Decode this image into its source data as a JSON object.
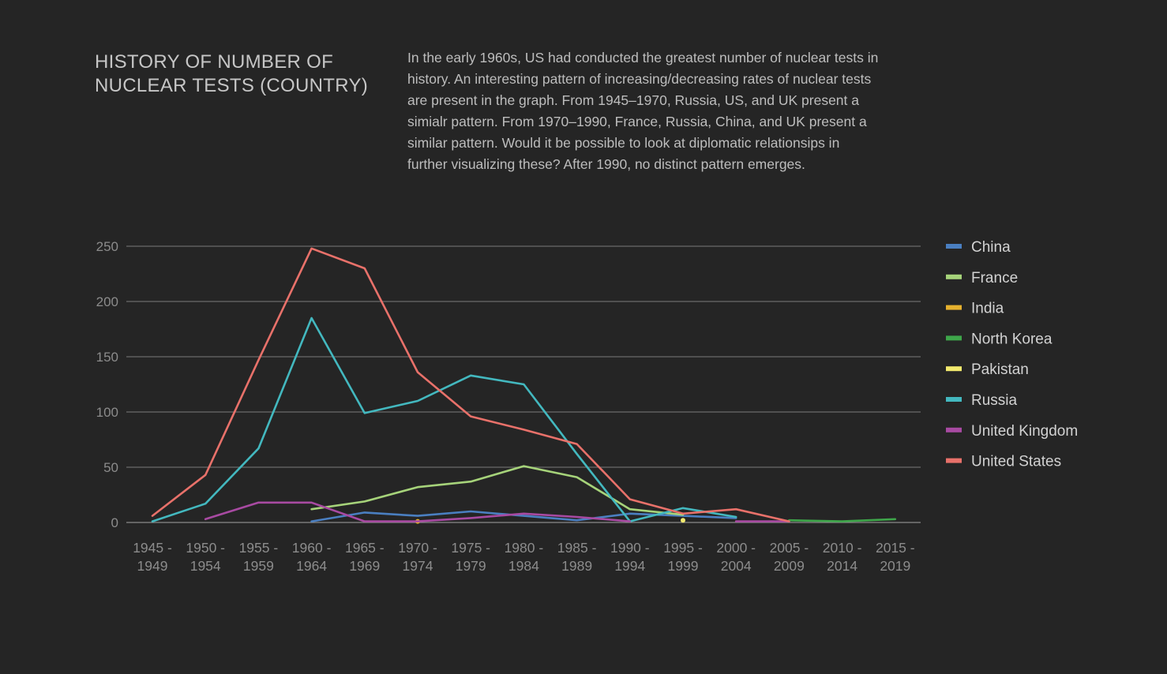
{
  "header": {
    "title_line1": "HISTORY OF NUMBER OF",
    "title_line2": "NUCLEAR TESTS (COUNTRY)",
    "description": "In the early 1960s, US had conducted the greatest number of nuclear tests in history. An interesting pattern of increasing/decreasing rates of nuclear tests are present in the graph. From 1945–1970, Russia, US, and UK present a simialr pattern. From 1970–1990, France, Russia, China, and UK present a similar pattern. Would it be possible to look at diplomatic relationsips in further visualizing these? After 1990, no distinct pattern emerges."
  },
  "chart_data": {
    "type": "line",
    "categories": [
      [
        "1945 -",
        "1949"
      ],
      [
        "1950 -",
        "1954"
      ],
      [
        "1955 -",
        "1959"
      ],
      [
        "1960 -",
        "1964"
      ],
      [
        "1965 -",
        "1969"
      ],
      [
        "1970 -",
        "1974"
      ],
      [
        "1975 -",
        "1979"
      ],
      [
        "1980 -",
        "1984"
      ],
      [
        "1985 -",
        "1989"
      ],
      [
        "1990 -",
        "1994"
      ],
      [
        "1995 -",
        "1999"
      ],
      [
        "2000 -",
        "2004"
      ],
      [
        "2005 -",
        "2009"
      ],
      [
        "2010 -",
        "2014"
      ],
      [
        "2015 -",
        "2019"
      ]
    ],
    "ylim": [
      0,
      250
    ],
    "yticks": [
      0,
      50,
      100,
      150,
      200,
      250
    ],
    "grid": true,
    "legend_position": "right",
    "series": [
      {
        "name": "China",
        "color": "#4a7fc1",
        "values": [
          null,
          null,
          null,
          1,
          9,
          6,
          10,
          6,
          2,
          8,
          6,
          4,
          null,
          null,
          null
        ]
      },
      {
        "name": "France",
        "color": "#a6d37a",
        "values": [
          null,
          null,
          null,
          12,
          19,
          32,
          37,
          51,
          41,
          12,
          7,
          null,
          null,
          null,
          null
        ]
      },
      {
        "name": "India",
        "color": "#e6b12e",
        "values": [
          null,
          null,
          null,
          null,
          null,
          1,
          null,
          null,
          null,
          null,
          null,
          null,
          null,
          null,
          null
        ]
      },
      {
        "name": "North Korea",
        "color": "#3ea64a",
        "values": [
          null,
          null,
          null,
          null,
          null,
          null,
          null,
          null,
          null,
          null,
          null,
          null,
          2,
          1,
          3
        ]
      },
      {
        "name": "Pakistan",
        "color": "#f2ea6e",
        "values": [
          null,
          null,
          null,
          null,
          null,
          null,
          null,
          null,
          null,
          null,
          2,
          null,
          null,
          null,
          null
        ]
      },
      {
        "name": "Russia",
        "color": "#43b8bf",
        "values": [
          1,
          17,
          67,
          185,
          99,
          110,
          133,
          125,
          62,
          1,
          13,
          5,
          null,
          null,
          null
        ]
      },
      {
        "name": "United Kingdom",
        "color": "#a84aa2",
        "values": [
          null,
          3,
          18,
          18,
          1,
          1,
          4,
          8,
          5,
          1,
          null,
          1,
          1,
          null,
          null
        ]
      },
      {
        "name": "United States",
        "color": "#e8716a",
        "values": [
          6,
          43,
          147,
          248,
          230,
          136,
          96,
          84,
          71,
          21,
          8,
          12,
          1,
          null,
          null
        ]
      }
    ]
  }
}
